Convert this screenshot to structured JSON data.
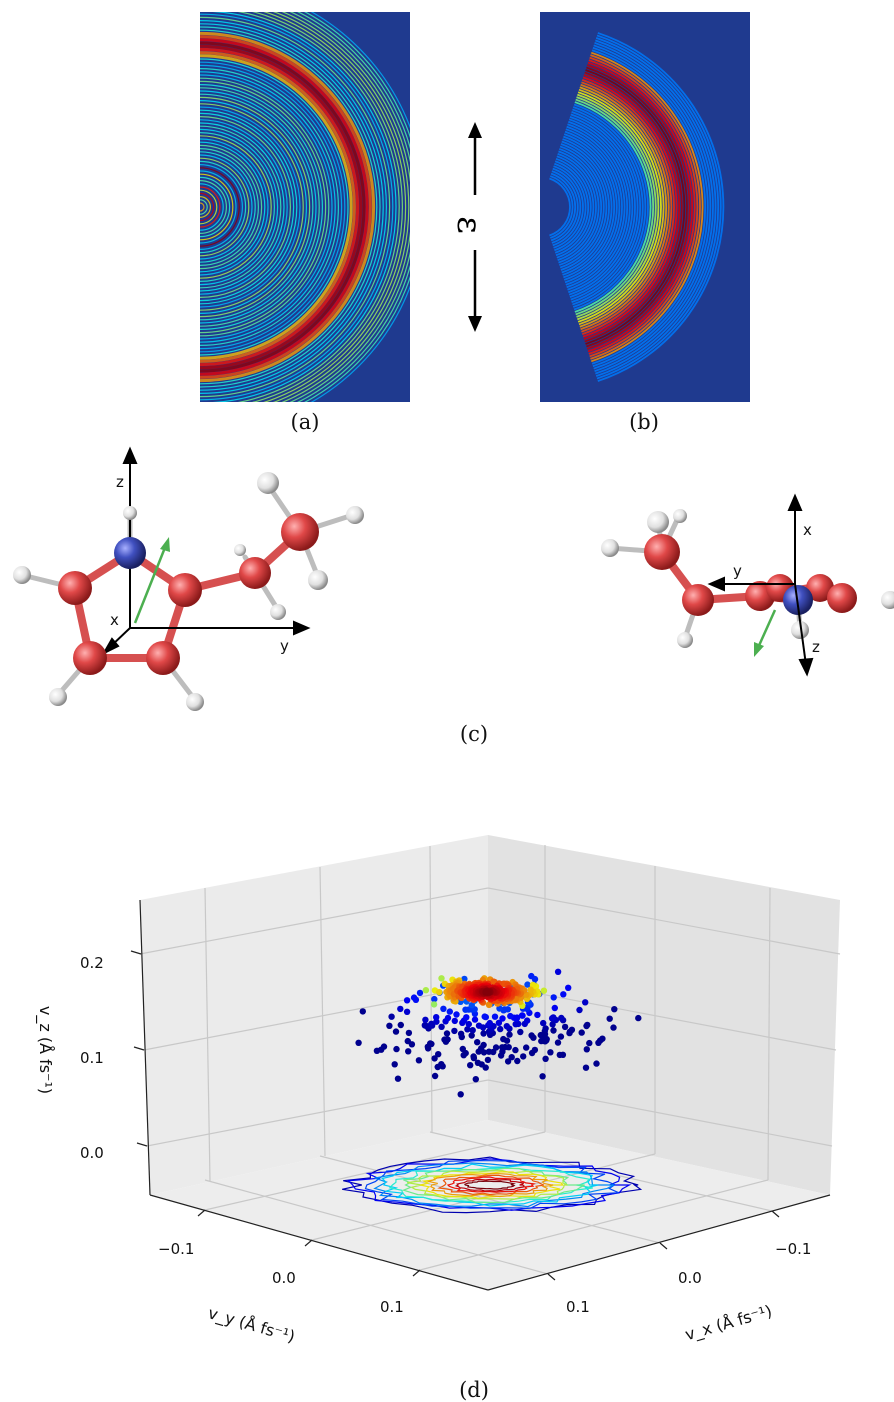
{
  "figure": {
    "captions": {
      "a": "(a)",
      "b": "(b)",
      "c": "(c)",
      "d": "(d)"
    },
    "polarization_label": "ε",
    "molecule_left_axes": {
      "x": "x",
      "y": "y",
      "z": "z"
    },
    "molecule_right_axes": {
      "x": "x",
      "y": "y",
      "z": "z"
    }
  },
  "chart_data": {
    "type": "scatter",
    "projection": "3d",
    "zlabel": "v_z (Å fs⁻¹)",
    "ylabel": "v_y (Å fs⁻¹)",
    "xlabel": "v_x (Å fs⁻¹)",
    "z_ticks": [
      "0.0",
      "0.1",
      "0.2"
    ],
    "y_ticks": [
      "−0.1",
      "0.0",
      "0.1"
    ],
    "x_ticks": [
      "−0.1",
      "0.0",
      "0.1"
    ],
    "zlim": [
      -0.05,
      0.25
    ],
    "xlim": [
      -0.15,
      0.15
    ],
    "ylim": [
      -0.15,
      0.15
    ],
    "grid": true,
    "colormap": "jet",
    "contour_projection": "bottom plane",
    "colors": {
      "pane": "#ebebeb",
      "grid": "#c8c8c8",
      "low": "#1a237e",
      "high": "#d50000"
    }
  }
}
